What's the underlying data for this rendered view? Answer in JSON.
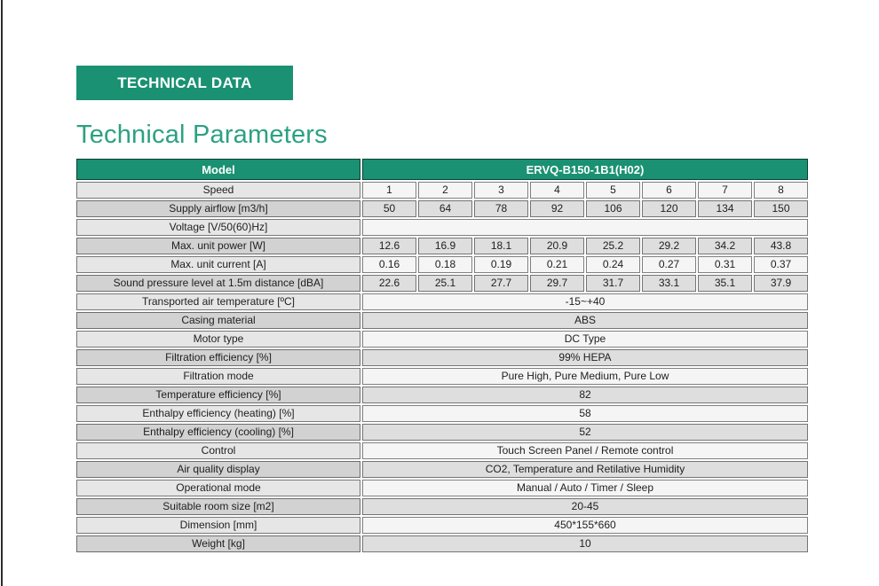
{
  "colors": {
    "green": "#1a9173",
    "title_green": "#2ba183"
  },
  "header": {
    "banner": "TECHNICAL DATA",
    "title": "Technical Parameters"
  },
  "table": {
    "header": {
      "label": "Model",
      "value": "ERVQ-B150-1B1(H02)"
    },
    "rows": [
      {
        "label": "Speed",
        "shade": "light",
        "values": [
          "1",
          "2",
          "3",
          "4",
          "5",
          "6",
          "7",
          "8"
        ]
      },
      {
        "label": "Supply airflow [m3/h]",
        "shade": "dark",
        "values": [
          "50",
          "64",
          "78",
          "92",
          "106",
          "120",
          "134",
          "150"
        ]
      },
      {
        "label": "Voltage [V/50(60)Hz]",
        "shade": "light",
        "value": ""
      },
      {
        "label": "Max. unit power [W]",
        "shade": "dark",
        "values": [
          "12.6",
          "16.9",
          "18.1",
          "20.9",
          "25.2",
          "29.2",
          "34.2",
          "43.8"
        ]
      },
      {
        "label": "Max. unit current [A]",
        "shade": "light",
        "values": [
          "0.16",
          "0.18",
          "0.19",
          "0.21",
          "0.24",
          "0.27",
          "0.31",
          "0.37"
        ]
      },
      {
        "label": "Sound pressure level at 1.5m distance [dBA]",
        "shade": "dark",
        "values": [
          "22.6",
          "25.1",
          "27.7",
          "29.7",
          "31.7",
          "33.1",
          "35.1",
          "37.9"
        ]
      },
      {
        "label": "Transported air temperature [ºC]",
        "shade": "light",
        "value": "-15~+40"
      },
      {
        "label": "Casing material",
        "shade": "dark",
        "value": "ABS"
      },
      {
        "label": "Motor type",
        "shade": "light",
        "value": "DC Type"
      },
      {
        "label": "Filtration efficiency [%]",
        "shade": "dark",
        "value": "99% HEPA"
      },
      {
        "label": "Filtration mode",
        "shade": "light",
        "value": "Pure High, Pure Medium, Pure Low"
      },
      {
        "label": "Temperature efficiency [%]",
        "shade": "dark",
        "value": "82"
      },
      {
        "label": "Enthalpy efficiency (heating) [%]",
        "shade": "light",
        "value": "58"
      },
      {
        "label": "Enthalpy efficiency (cooling) [%]",
        "shade": "dark",
        "value": "52"
      },
      {
        "label": "Control",
        "shade": "light",
        "value": "Touch Screen Panel / Remote control"
      },
      {
        "label": "Air quality display",
        "shade": "dark",
        "value": "CO2, Temperature and Retilative Humidity"
      },
      {
        "label": "Operational mode",
        "shade": "light",
        "value": "Manual / Auto / Timer / Sleep"
      },
      {
        "label": "Suitable room size [m2]",
        "shade": "dark",
        "value": "20-45"
      },
      {
        "label": "Dimension [mm]",
        "shade": "light",
        "value": "450*155*660"
      },
      {
        "label": "Weight [kg]",
        "shade": "dark",
        "value": "10"
      }
    ]
  }
}
